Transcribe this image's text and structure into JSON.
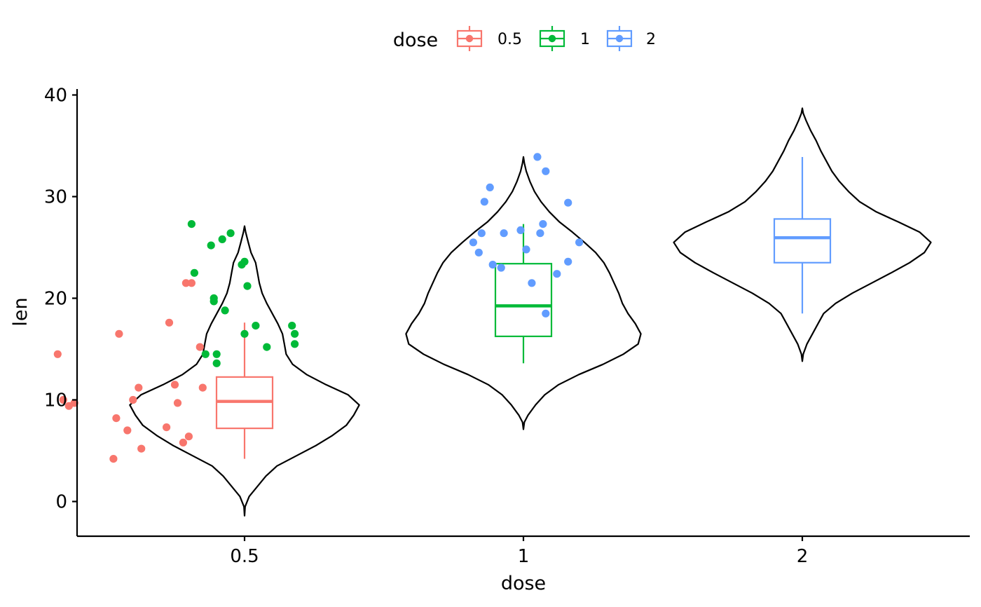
{
  "chart_data": {
    "type": "violin",
    "overlays": [
      "boxplot",
      "jitter"
    ],
    "xlabel": "dose",
    "ylabel": "len",
    "ylim": [
      -3.4,
      40.4
    ],
    "yticks": [
      0,
      10,
      20,
      30,
      40
    ],
    "categories": [
      "0.5",
      "1",
      "2"
    ],
    "grid": false,
    "legend": {
      "title": "dose",
      "position": "top",
      "entries": [
        "0.5",
        "1",
        "2"
      ]
    },
    "colors": {
      "0.5": "#F8766D",
      "1": "#00BA38",
      "2": "#619CFF",
      "violin_outline": "#000000"
    },
    "series": [
      {
        "name": "0.5",
        "violin": {
          "ymin": -1.4,
          "ymax": 27.1,
          "profile": [
            [
              -1.4,
              0.0
            ],
            [
              -0.5,
              0.06
            ],
            [
              0.5,
              0.5
            ],
            [
              1.5,
              1.4
            ],
            [
              2.5,
              2.3
            ],
            [
              3.5,
              3.5
            ],
            [
              4.5,
              5.6
            ],
            [
              5.5,
              7.7
            ],
            [
              6.5,
              9.5
            ],
            [
              7.5,
              11.0
            ],
            [
              8.5,
              11.8
            ],
            [
              9.5,
              12.4
            ],
            [
              10.5,
              11.2
            ],
            [
              11.5,
              8.8
            ],
            [
              12.5,
              6.7
            ],
            [
              13.5,
              5.2
            ],
            [
              14.5,
              4.5
            ],
            [
              15.5,
              4.3
            ],
            [
              16.5,
              4.1
            ],
            [
              17.5,
              3.6
            ],
            [
              18.5,
              3.0
            ],
            [
              19.5,
              2.4
            ],
            [
              20.5,
              1.9
            ],
            [
              21.5,
              1.6
            ],
            [
              22.5,
              1.4
            ],
            [
              23.5,
              1.2
            ],
            [
              24.5,
              0.7
            ],
            [
              25.5,
              0.4
            ],
            [
              26.5,
              0.12
            ],
            [
              27.1,
              0.0
            ]
          ]
        },
        "box": {
          "whisker_low": 4.2,
          "q1": 7.2,
          "median": 9.85,
          "q3": 12.25,
          "whisker_high": 17.6
        },
        "points": [
          [
            0.81,
            21.5
          ],
          [
            0.79,
            21.5
          ],
          [
            0.55,
            16.5
          ],
          [
            0.73,
            17.6
          ],
          [
            0.84,
            15.2
          ],
          [
            0.33,
            14.5
          ],
          [
            0.62,
            11.2
          ],
          [
            0.75,
            11.5
          ],
          [
            0.85,
            11.2
          ],
          [
            0.35,
            10.0
          ],
          [
            0.6,
            10.0
          ],
          [
            0.76,
            9.7
          ],
          [
            0.39,
            9.7
          ],
          [
            0.37,
            9.4
          ],
          [
            0.54,
            8.2
          ],
          [
            0.72,
            7.3
          ],
          [
            0.58,
            7.0
          ],
          [
            0.8,
            6.4
          ],
          [
            0.78,
            5.8
          ],
          [
            0.63,
            5.2
          ],
          [
            0.53,
            4.2
          ]
        ]
      },
      {
        "name": "1",
        "violin": {
          "ymin": 7.1,
          "ymax": 33.9,
          "profile": [
            [
              7.1,
              0.0
            ],
            [
              7.8,
              0.1
            ],
            [
              8.5,
              0.5
            ],
            [
              9.5,
              1.3
            ],
            [
              10.5,
              2.3
            ],
            [
              11.5,
              3.8
            ],
            [
              12.5,
              6.0
            ],
            [
              13.5,
              8.6
            ],
            [
              14.5,
              10.8
            ],
            [
              15.5,
              12.4
            ],
            [
              16.5,
              12.7
            ],
            [
              17.5,
              12.1
            ],
            [
              18.5,
              11.3
            ],
            [
              19.5,
              10.7
            ],
            [
              20.5,
              10.3
            ],
            [
              21.5,
              9.8
            ],
            [
              22.5,
              9.3
            ],
            [
              23.5,
              8.7
            ],
            [
              24.5,
              7.8
            ],
            [
              25.5,
              6.6
            ],
            [
              26.5,
              5.3
            ],
            [
              27.5,
              3.9
            ],
            [
              28.5,
              2.8
            ],
            [
              29.5,
              1.9
            ],
            [
              30.5,
              1.2
            ],
            [
              31.5,
              0.7
            ],
            [
              32.5,
              0.3
            ],
            [
              33.3,
              0.1
            ],
            [
              33.9,
              0.0
            ]
          ]
        },
        "box": {
          "whisker_low": 13.6,
          "q1": 16.25,
          "median": 19.25,
          "q3": 23.4,
          "whisker_high": 27.3
        },
        "points": [
          [
            0.81,
            27.3
          ],
          [
            0.95,
            26.4
          ],
          [
            0.92,
            25.8
          ],
          [
            0.88,
            25.2
          ],
          [
            1.0,
            23.6
          ],
          [
            0.99,
            23.3
          ],
          [
            0.82,
            22.5
          ],
          [
            1.01,
            21.2
          ],
          [
            0.89,
            20.0
          ],
          [
            0.89,
            19.7
          ],
          [
            0.93,
            18.8
          ],
          [
            1.0,
            16.5
          ],
          [
            1.04,
            17.3
          ],
          [
            1.17,
            17.3
          ],
          [
            1.18,
            16.5
          ],
          [
            1.08,
            15.2
          ],
          [
            1.18,
            15.5
          ],
          [
            0.86,
            14.5
          ],
          [
            0.9,
            14.5
          ],
          [
            0.9,
            13.6
          ]
        ]
      },
      {
        "name": "2",
        "violin": {
          "ymin": 13.8,
          "ymax": 38.7,
          "profile": [
            [
              13.8,
              0.0
            ],
            [
              14.5,
              0.1
            ],
            [
              15.5,
              0.5
            ],
            [
              16.5,
              1.1
            ],
            [
              17.5,
              1.7
            ],
            [
              18.5,
              2.3
            ],
            [
              19.5,
              3.6
            ],
            [
              20.5,
              5.4
            ],
            [
              21.5,
              7.5
            ],
            [
              22.5,
              9.6
            ],
            [
              23.5,
              11.6
            ],
            [
              24.5,
              13.2
            ],
            [
              25.5,
              13.9
            ],
            [
              26.5,
              12.7
            ],
            [
              27.5,
              10.4
            ],
            [
              28.5,
              8.0
            ],
            [
              29.5,
              6.2
            ],
            [
              30.5,
              5.0
            ],
            [
              31.5,
              4.0
            ],
            [
              32.5,
              3.2
            ],
            [
              33.5,
              2.6
            ],
            [
              34.5,
              2.0
            ],
            [
              35.5,
              1.5
            ],
            [
              36.5,
              0.9
            ],
            [
              37.5,
              0.4
            ],
            [
              38.2,
              0.1
            ],
            [
              38.7,
              0.0
            ]
          ]
        },
        "box": {
          "whisker_low": 18.5,
          "q1": 23.5,
          "median": 25.95,
          "q3": 27.8,
          "whisker_high": 33.9
        },
        "points": [
          [
            2.05,
            33.9
          ],
          [
            2.08,
            32.5
          ],
          [
            1.88,
            30.9
          ],
          [
            2.16,
            29.4
          ],
          [
            1.86,
            29.5
          ],
          [
            2.07,
            27.3
          ],
          [
            1.99,
            26.7
          ],
          [
            1.93,
            26.4
          ],
          [
            1.85,
            26.4
          ],
          [
            2.06,
            26.4
          ],
          [
            2.2,
            25.5
          ],
          [
            1.82,
            25.5
          ],
          [
            1.84,
            24.5
          ],
          [
            2.01,
            24.8
          ],
          [
            2.16,
            23.6
          ],
          [
            1.89,
            23.3
          ],
          [
            1.92,
            23.0
          ],
          [
            2.12,
            22.4
          ],
          [
            2.03,
            21.5
          ],
          [
            2.08,
            18.5
          ]
        ]
      }
    ]
  }
}
